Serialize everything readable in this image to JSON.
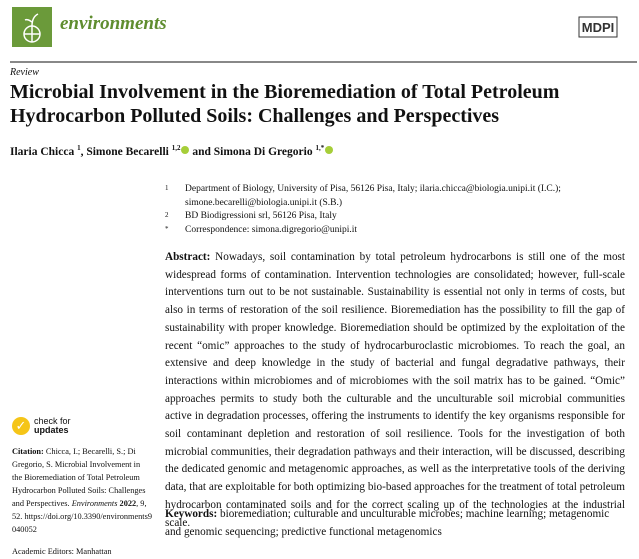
{
  "header": {
    "journal": "environments",
    "publisher": "MDPI",
    "brand_color": "#6b9a3a"
  },
  "article_type": "Review",
  "title": "Microbial Involvement in the Bioremediation of Total Petroleum Hydrocarbon Polluted Soils: Challenges and Perspectives",
  "authors": [
    {
      "name": "Ilaria Chicca",
      "aff": "1"
    },
    {
      "name": "Simone Becarelli",
      "aff": "1,2"
    },
    {
      "name": "Simona Di Gregorio",
      "aff": "1,*"
    }
  ],
  "authors_join": {
    "comma": ", ",
    "and": " and "
  },
  "affiliations": [
    {
      "mark": "1",
      "text": "Department of Biology, University of Pisa, 56126 Pisa, Italy; ilaria.chicca@biologia.unipi.it (I.C.); simone.becarelli@biologia.unipi.it (S.B.)"
    },
    {
      "mark": "2",
      "text": "BD Biodigressioni srl, 56126 Pisa, Italy"
    },
    {
      "mark": "*",
      "text": "Correspondence: simona.digregorio@unipi.it"
    }
  ],
  "abstract": {
    "label": "Abstract:",
    "text": "Nowadays, soil contamination by total petroleum hydrocarbons is still one of the most widespread forms of contamination. Intervention technologies are consolidated; however, full-scale interventions turn out to be not sustainable. Sustainability is essential not only in terms of costs, but also in terms of restoration of the soil resilience. Bioremediation has the possibility to fill the gap of sustainability with proper knowledge. Bioremediation should be optimized by the exploitation of the recent “omic” approaches to the study of hydrocarburoclastic microbiomes. To reach the goal, an extensive and deep knowledge in the study of bacterial and fungal degradative pathways, their interactions within microbiomes and of microbiomes with the soil matrix has to be gained. “Omic” approaches permits to study both the culturable and the unculturable soil microbial communities active in degradation processes, offering the instruments to identify the key organisms responsible for soil contaminant depletion and restoration of soil resilience. Tools for the investigation of both microbial communities, their degradation pathways and their interaction, will be discussed, describing the dedicated genomic and metagenomic approaches, as well as the interpretative tools of the deriving data, that are exploitable for both optimizing bio-based approaches for the treatment of total petroleum hydrocarbon contaminated soils and for the correct scaling up of the technologies at the industrial scale."
  },
  "keywords": {
    "label": "Keywords:",
    "text": "bioremediation; culturable and unculturable microbes; machine learning; metagenomic and genomic sequencing; predictive functional metagenomics"
  },
  "sidebar": {
    "check_line1": "check for",
    "check_line2": "updates",
    "citation_label": "Citation:",
    "citation_text": "Chicca, I.; Becarelli, S.; Di Gregorio, S. Microbial Involvement in the Bioremediation of Total Petroleum Hydrocarbon Polluted Soils: Challenges and Perspectives.",
    "citation_journal": "Environments",
    "citation_year": "2022",
    "citation_vol": ", 9, 52.",
    "citation_doi": "https://doi.org/10.3390/environments9040052",
    "editors": "Academic Editors: Manhattan"
  }
}
